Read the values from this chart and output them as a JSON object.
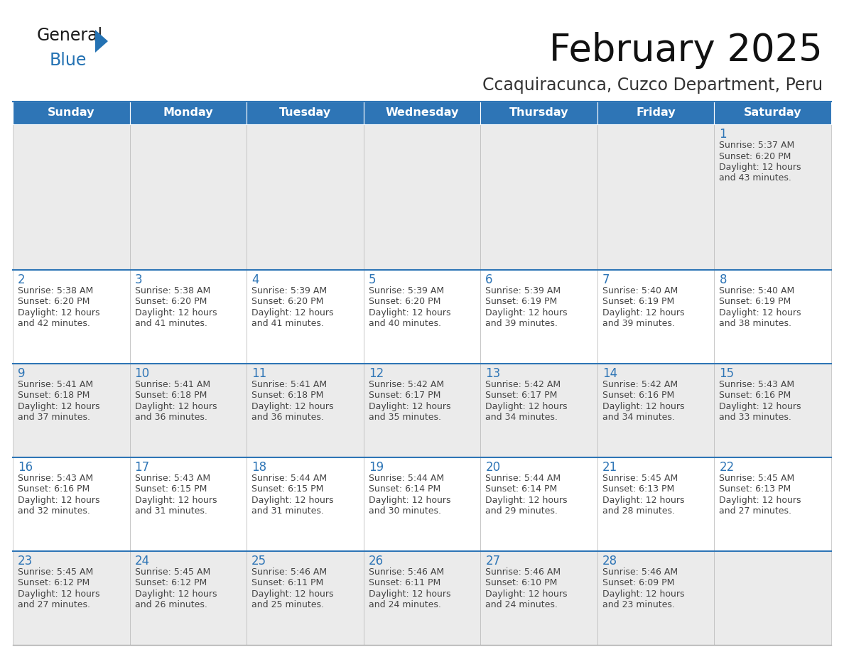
{
  "title": "February 2025",
  "subtitle": "Ccaquiracunca, Cuzco Department, Peru",
  "header_bg": "#2E75B6",
  "header_text_color": "#FFFFFF",
  "cell_bg_light": "#EBEBEB",
  "cell_bg_white": "#FFFFFF",
  "day_number_color": "#2E75B6",
  "text_color": "#444444",
  "border_color": "#2E75B6",
  "days_of_week": [
    "Sunday",
    "Monday",
    "Tuesday",
    "Wednesday",
    "Thursday",
    "Friday",
    "Saturday"
  ],
  "logo_general_color": "#1a1a1a",
  "logo_blue_color": "#2472B3",
  "cal_data": [
    [
      {
        "day": "",
        "sunrise": "",
        "sunset": "",
        "daylight": ""
      },
      {
        "day": "",
        "sunrise": "",
        "sunset": "",
        "daylight": ""
      },
      {
        "day": "",
        "sunrise": "",
        "sunset": "",
        "daylight": ""
      },
      {
        "day": "",
        "sunrise": "",
        "sunset": "",
        "daylight": ""
      },
      {
        "day": "",
        "sunrise": "",
        "sunset": "",
        "daylight": ""
      },
      {
        "day": "",
        "sunrise": "",
        "sunset": "",
        "daylight": ""
      },
      {
        "day": "1",
        "sunrise": "5:37 AM",
        "sunset": "6:20 PM",
        "daylight": "12 hours\nand 43 minutes."
      }
    ],
    [
      {
        "day": "2",
        "sunrise": "5:38 AM",
        "sunset": "6:20 PM",
        "daylight": "12 hours\nand 42 minutes."
      },
      {
        "day": "3",
        "sunrise": "5:38 AM",
        "sunset": "6:20 PM",
        "daylight": "12 hours\nand 41 minutes."
      },
      {
        "day": "4",
        "sunrise": "5:39 AM",
        "sunset": "6:20 PM",
        "daylight": "12 hours\nand 41 minutes."
      },
      {
        "day": "5",
        "sunrise": "5:39 AM",
        "sunset": "6:20 PM",
        "daylight": "12 hours\nand 40 minutes."
      },
      {
        "day": "6",
        "sunrise": "5:39 AM",
        "sunset": "6:19 PM",
        "daylight": "12 hours\nand 39 minutes."
      },
      {
        "day": "7",
        "sunrise": "5:40 AM",
        "sunset": "6:19 PM",
        "daylight": "12 hours\nand 39 minutes."
      },
      {
        "day": "8",
        "sunrise": "5:40 AM",
        "sunset": "6:19 PM",
        "daylight": "12 hours\nand 38 minutes."
      }
    ],
    [
      {
        "day": "9",
        "sunrise": "5:41 AM",
        "sunset": "6:18 PM",
        "daylight": "12 hours\nand 37 minutes."
      },
      {
        "day": "10",
        "sunrise": "5:41 AM",
        "sunset": "6:18 PM",
        "daylight": "12 hours\nand 36 minutes."
      },
      {
        "day": "11",
        "sunrise": "5:41 AM",
        "sunset": "6:18 PM",
        "daylight": "12 hours\nand 36 minutes."
      },
      {
        "day": "12",
        "sunrise": "5:42 AM",
        "sunset": "6:17 PM",
        "daylight": "12 hours\nand 35 minutes."
      },
      {
        "day": "13",
        "sunrise": "5:42 AM",
        "sunset": "6:17 PM",
        "daylight": "12 hours\nand 34 minutes."
      },
      {
        "day": "14",
        "sunrise": "5:42 AM",
        "sunset": "6:16 PM",
        "daylight": "12 hours\nand 34 minutes."
      },
      {
        "day": "15",
        "sunrise": "5:43 AM",
        "sunset": "6:16 PM",
        "daylight": "12 hours\nand 33 minutes."
      }
    ],
    [
      {
        "day": "16",
        "sunrise": "5:43 AM",
        "sunset": "6:16 PM",
        "daylight": "12 hours\nand 32 minutes."
      },
      {
        "day": "17",
        "sunrise": "5:43 AM",
        "sunset": "6:15 PM",
        "daylight": "12 hours\nand 31 minutes."
      },
      {
        "day": "18",
        "sunrise": "5:44 AM",
        "sunset": "6:15 PM",
        "daylight": "12 hours\nand 31 minutes."
      },
      {
        "day": "19",
        "sunrise": "5:44 AM",
        "sunset": "6:14 PM",
        "daylight": "12 hours\nand 30 minutes."
      },
      {
        "day": "20",
        "sunrise": "5:44 AM",
        "sunset": "6:14 PM",
        "daylight": "12 hours\nand 29 minutes."
      },
      {
        "day": "21",
        "sunrise": "5:45 AM",
        "sunset": "6:13 PM",
        "daylight": "12 hours\nand 28 minutes."
      },
      {
        "day": "22",
        "sunrise": "5:45 AM",
        "sunset": "6:13 PM",
        "daylight": "12 hours\nand 27 minutes."
      }
    ],
    [
      {
        "day": "23",
        "sunrise": "5:45 AM",
        "sunset": "6:12 PM",
        "daylight": "12 hours\nand 27 minutes."
      },
      {
        "day": "24",
        "sunrise": "5:45 AM",
        "sunset": "6:12 PM",
        "daylight": "12 hours\nand 26 minutes."
      },
      {
        "day": "25",
        "sunrise": "5:46 AM",
        "sunset": "6:11 PM",
        "daylight": "12 hours\nand 25 minutes."
      },
      {
        "day": "26",
        "sunrise": "5:46 AM",
        "sunset": "6:11 PM",
        "daylight": "12 hours\nand 24 minutes."
      },
      {
        "day": "27",
        "sunrise": "5:46 AM",
        "sunset": "6:10 PM",
        "daylight": "12 hours\nand 24 minutes."
      },
      {
        "day": "28",
        "sunrise": "5:46 AM",
        "sunset": "6:09 PM",
        "daylight": "12 hours\nand 23 minutes."
      },
      {
        "day": "",
        "sunrise": "",
        "sunset": "",
        "daylight": ""
      }
    ]
  ]
}
